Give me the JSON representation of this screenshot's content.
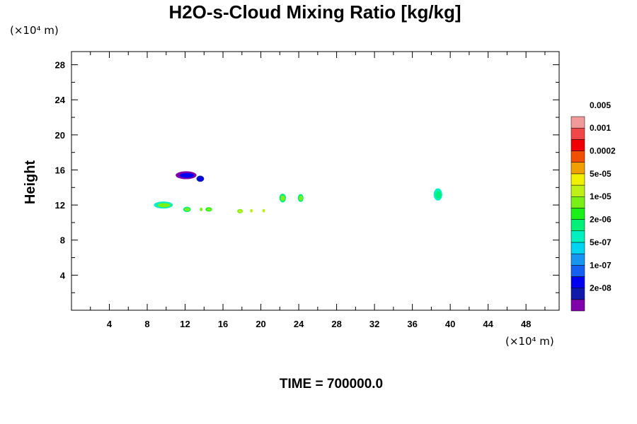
{
  "chart_data": {
    "type": "contour",
    "title": "H2O-s-Cloud Mixing Ratio [kg/kg]",
    "ylabel": "Height",
    "x_unit": "(×10⁴ m)",
    "y_unit": "(×10⁴ m)",
    "time_label": "TIME = 700000.0",
    "xlim": [
      0,
      51.5
    ],
    "ylim": [
      0,
      29.5
    ],
    "x_ticks": [
      4,
      8,
      12,
      16,
      20,
      24,
      28,
      32,
      36,
      40,
      44,
      48
    ],
    "y_ticks": [
      4,
      8,
      12,
      16,
      20,
      24,
      28
    ],
    "colorbar": {
      "colors": [
        "#7f00a8",
        "#0f1aa8",
        "#0000f0",
        "#1560f0",
        "#1696f0",
        "#00d4f0",
        "#00f0c0",
        "#00f07a",
        "#18f018",
        "#7af018",
        "#bff018",
        "#f0f000",
        "#f0a000",
        "#f05000",
        "#f00000",
        "#f04848",
        "#f09a9a"
      ],
      "labels": [
        "2e-08",
        "1e-07",
        "5e-07",
        "2e-06",
        "1e-05",
        "5e-05",
        "0.0002",
        "0.001",
        "0.005"
      ]
    },
    "patches": [
      {
        "x": 12.1,
        "y": 15.4,
        "rx": 1.1,
        "ry": 0.45,
        "level": 2,
        "outer_level": 0
      },
      {
        "x": 13.6,
        "y": 15.0,
        "rx": 0.4,
        "ry": 0.35,
        "level": 2,
        "outer_level": 1
      },
      {
        "x": 9.7,
        "y": 12.0,
        "rx": 1.0,
        "ry": 0.4,
        "level": 9,
        "outer_level": 6
      },
      {
        "x": 12.2,
        "y": 11.5,
        "rx": 0.4,
        "ry": 0.3,
        "level": 9,
        "outer_level": 7
      },
      {
        "x": 14.5,
        "y": 11.5,
        "rx": 0.35,
        "ry": 0.25,
        "level": 9,
        "outer_level": 8
      },
      {
        "x": 13.7,
        "y": 11.5,
        "rx": 0.15,
        "ry": 0.2,
        "level": 9,
        "outer_level": 9
      },
      {
        "x": 17.8,
        "y": 11.3,
        "rx": 0.3,
        "ry": 0.25,
        "level": 10,
        "outer_level": 9
      },
      {
        "x": 19.0,
        "y": 11.35,
        "rx": 0.15,
        "ry": 0.2,
        "level": 10,
        "outer_level": 10
      },
      {
        "x": 20.3,
        "y": 11.35,
        "rx": 0.15,
        "ry": 0.2,
        "level": 10,
        "outer_level": 10
      },
      {
        "x": 22.3,
        "y": 12.8,
        "rx": 0.35,
        "ry": 0.5,
        "level": 9,
        "outer_level": 7
      },
      {
        "x": 24.2,
        "y": 12.8,
        "rx": 0.3,
        "ry": 0.45,
        "level": 9,
        "outer_level": 7
      },
      {
        "x": 38.7,
        "y": 13.2,
        "rx": 0.45,
        "ry": 0.7,
        "level": 7,
        "outer_level": 6
      }
    ]
  }
}
